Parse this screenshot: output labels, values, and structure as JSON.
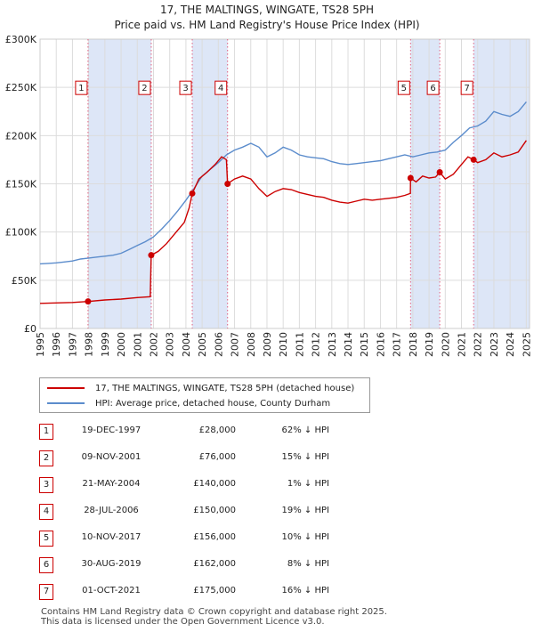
{
  "title_line1": "17, THE MALTINGS, WINGATE, TS28 5PH",
  "title_line2": "Price paid vs. HM Land Registry's House Price Index (HPI)",
  "colors": {
    "property": "#cc0000",
    "hpi": "#5b8ccc",
    "shade": "#dde6f7",
    "grid": "#dcdcdc"
  },
  "chart_data": {
    "type": "line",
    "x_min": 1995,
    "x_max": 2025.2,
    "ylim": [
      0,
      300000
    ],
    "y_ticks": [
      {
        "v": 0,
        "label": "£0"
      },
      {
        "v": 50000,
        "label": "£50K"
      },
      {
        "v": 100000,
        "label": "£100K"
      },
      {
        "v": 150000,
        "label": "£150K"
      },
      {
        "v": 200000,
        "label": "£200K"
      },
      {
        "v": 250000,
        "label": "£250K"
      },
      {
        "v": 300000,
        "label": "£300K"
      }
    ],
    "x_ticks": [
      "1995",
      "1996",
      "1997",
      "1998",
      "1999",
      "2000",
      "2001",
      "2002",
      "2003",
      "2004",
      "2005",
      "2006",
      "2007",
      "2008",
      "2009",
      "2010",
      "2011",
      "2012",
      "2013",
      "2014",
      "2015",
      "2016",
      "2017",
      "2018",
      "2019",
      "2020",
      "2021",
      "2022",
      "2023",
      "2024",
      "2025"
    ],
    "shaded_ranges": [
      [
        1997.96,
        2001.86
      ],
      [
        2004.39,
        2006.57
      ],
      [
        2017.86,
        2019.66
      ],
      [
        2021.75,
        2025.2
      ]
    ],
    "series": [
      {
        "name": "17, THE MALTINGS, WINGATE, TS28 5PH (detached house)",
        "color": "#cc0000",
        "x": [
          1995.0,
          1996.0,
          1997.0,
          1997.96,
          1999.0,
          2000.0,
          2001.0,
          2001.8,
          2001.86,
          2002.3,
          2002.8,
          2003.3,
          2003.9,
          2004.2,
          2004.39,
          2004.8,
          2005.3,
          2005.8,
          2006.2,
          2006.5,
          2006.57,
          2007.0,
          2007.5,
          2008.0,
          2008.5,
          2009.0,
          2009.5,
          2010.0,
          2010.5,
          2011.0,
          2011.5,
          2012.0,
          2012.5,
          2013.0,
          2013.5,
          2014.0,
          2014.5,
          2015.0,
          2015.5,
          2016.0,
          2016.5,
          2017.0,
          2017.5,
          2017.85,
          2017.86,
          2018.2,
          2018.6,
          2019.0,
          2019.4,
          2019.66,
          2020.0,
          2020.5,
          2021.0,
          2021.4,
          2021.75,
          2022.0,
          2022.5,
          2023.0,
          2023.5,
          2024.0,
          2024.5,
          2025.0
        ],
        "y": [
          26000,
          26500,
          27000,
          28000,
          29500,
          30500,
          32000,
          33000,
          76000,
          80000,
          88000,
          98000,
          110000,
          125000,
          140000,
          155000,
          162000,
          170000,
          178000,
          175000,
          150000,
          155000,
          158000,
          155000,
          145000,
          137000,
          142000,
          145000,
          144000,
          141000,
          139000,
          137000,
          136000,
          133000,
          131000,
          130000,
          132000,
          134000,
          133000,
          134000,
          135000,
          136000,
          138000,
          140000,
          156000,
          152000,
          158000,
          156000,
          157000,
          162000,
          155000,
          160000,
          170000,
          178000,
          175000,
          172000,
          175000,
          182000,
          178000,
          180000,
          183000,
          195000
        ]
      },
      {
        "name": "HPI: Average price, detached house, County Durham",
        "color": "#5b8ccc",
        "x": [
          1995.0,
          1995.5,
          1996.0,
          1996.5,
          1997.0,
          1997.5,
          1998.0,
          1998.5,
          1999.0,
          1999.5,
          2000.0,
          2000.5,
          2001.0,
          2001.5,
          2002.0,
          2002.5,
          2003.0,
          2003.5,
          2004.0,
          2004.5,
          2005.0,
          2005.5,
          2006.0,
          2006.5,
          2007.0,
          2007.5,
          2008.0,
          2008.5,
          2009.0,
          2009.5,
          2010.0,
          2010.5,
          2011.0,
          2011.5,
          2012.0,
          2012.5,
          2013.0,
          2013.5,
          2014.0,
          2014.5,
          2015.0,
          2015.5,
          2016.0,
          2016.5,
          2017.0,
          2017.5,
          2018.0,
          2018.5,
          2019.0,
          2019.5,
          2020.0,
          2020.5,
          2021.0,
          2021.5,
          2022.0,
          2022.5,
          2023.0,
          2023.5,
          2024.0,
          2024.5,
          2025.0
        ],
        "y": [
          67000,
          67500,
          68000,
          69000,
          70000,
          72000,
          73000,
          74000,
          75000,
          76000,
          78000,
          82000,
          86000,
          90000,
          95000,
          103000,
          112000,
          122000,
          133000,
          145000,
          158000,
          165000,
          172000,
          180000,
          185000,
          188000,
          192000,
          188000,
          178000,
          182000,
          188000,
          185000,
          180000,
          178000,
          177000,
          176000,
          173000,
          171000,
          170000,
          171000,
          172000,
          173000,
          174000,
          176000,
          178000,
          180000,
          178000,
          180000,
          182000,
          183000,
          185000,
          193000,
          200000,
          208000,
          210000,
          215000,
          225000,
          222000,
          220000,
          225000,
          235000
        ]
      }
    ],
    "markers": [
      {
        "label": "1",
        "x": 1997.96,
        "y": 28000,
        "box_y": 250000
      },
      {
        "label": "2",
        "x": 2001.86,
        "y": 76000,
        "box_y": 250000
      },
      {
        "label": "3",
        "x": 2004.39,
        "y": 140000,
        "box_y": 250000
      },
      {
        "label": "4",
        "x": 2006.57,
        "y": 150000,
        "box_y": 250000
      },
      {
        "label": "5",
        "x": 2017.86,
        "y": 156000,
        "box_y": 250000
      },
      {
        "label": "6",
        "x": 2019.66,
        "y": 162000,
        "box_y": 250000
      },
      {
        "label": "7",
        "x": 2021.75,
        "y": 175000,
        "box_y": 250000
      }
    ]
  },
  "legend": {
    "property": "17, THE MALTINGS, WINGATE, TS28 5PH (detached house)",
    "hpi": "HPI: Average price, detached house, County Durham"
  },
  "transactions": [
    {
      "num": "1",
      "date": "19-DEC-1997",
      "price": "£28,000",
      "pct": "62% ↓ HPI"
    },
    {
      "num": "2",
      "date": "09-NOV-2001",
      "price": "£76,000",
      "pct": "15% ↓ HPI"
    },
    {
      "num": "3",
      "date": "21-MAY-2004",
      "price": "£140,000",
      "pct": "1% ↓ HPI"
    },
    {
      "num": "4",
      "date": "28-JUL-2006",
      "price": "£150,000",
      "pct": "19% ↓ HPI"
    },
    {
      "num": "5",
      "date": "10-NOV-2017",
      "price": "£156,000",
      "pct": "10% ↓ HPI"
    },
    {
      "num": "6",
      "date": "30-AUG-2019",
      "price": "£162,000",
      "pct": "8% ↓ HPI"
    },
    {
      "num": "7",
      "date": "01-OCT-2021",
      "price": "£175,000",
      "pct": "16% ↓ HPI"
    }
  ],
  "footer_line1": "Contains HM Land Registry data © Crown copyright and database right 2025.",
  "footer_line2": "This data is licensed under the Open Government Licence v3.0."
}
